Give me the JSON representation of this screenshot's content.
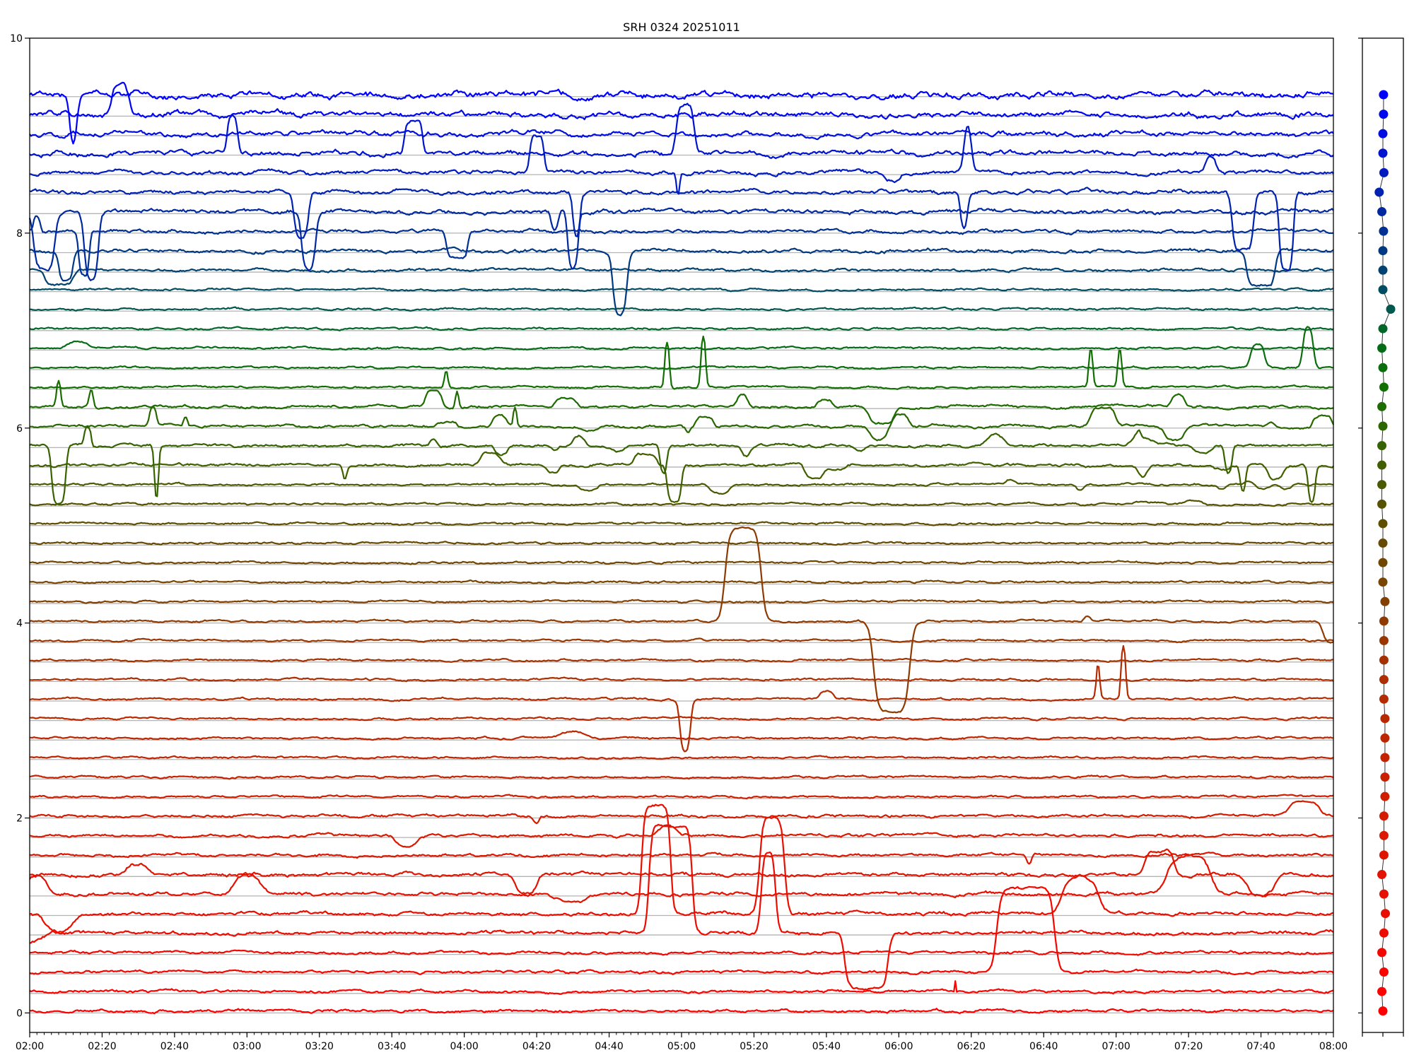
{
  "chart_data": {
    "type": "line",
    "title": "SRH 0324 20251011",
    "xlabel": "",
    "ylabel": "",
    "x_unit": "minutes since 02:00",
    "xlim": [
      0,
      360
    ],
    "ylim": [
      -0.2,
      10
    ],
    "grid": true,
    "grid_step": 0.2,
    "grid_count": 48,
    "xticks": [
      {
        "t": 0,
        "label": "02:00"
      },
      {
        "t": 20,
        "label": "02:20"
      },
      {
        "t": 40,
        "label": "02:40"
      },
      {
        "t": 60,
        "label": "03:00"
      },
      {
        "t": 80,
        "label": "03:20"
      },
      {
        "t": 100,
        "label": "03:40"
      },
      {
        "t": 120,
        "label": "04:00"
      },
      {
        "t": 140,
        "label": "04:20"
      },
      {
        "t": 160,
        "label": "04:40"
      },
      {
        "t": 180,
        "label": "05:00"
      },
      {
        "t": 200,
        "label": "05:20"
      },
      {
        "t": 220,
        "label": "05:40"
      },
      {
        "t": 240,
        "label": "06:00"
      },
      {
        "t": 260,
        "label": "06:20"
      },
      {
        "t": 280,
        "label": "06:40"
      },
      {
        "t": 300,
        "label": "07:00"
      },
      {
        "t": 320,
        "label": "07:20"
      },
      {
        "t": 340,
        "label": "07:40"
      },
      {
        "t": 360,
        "label": "08:00"
      }
    ],
    "minor_tick_step": 2,
    "yticks": [
      {
        "v": 0,
        "label": "0"
      },
      {
        "v": 2,
        "label": "2"
      },
      {
        "v": 4,
        "label": "4"
      },
      {
        "v": 6,
        "label": "6"
      },
      {
        "v": 8,
        "label": "8"
      },
      {
        "v": 10,
        "label": "10"
      }
    ],
    "colormap": [
      [
        "0",
        "#ff0000"
      ],
      [
        "0.2",
        "#d81a00"
      ],
      [
        "0.38",
        "#a83000"
      ],
      [
        "0.45",
        "#804000"
      ],
      [
        "0.53",
        "#604c00"
      ],
      [
        "0.6",
        "#406000"
      ],
      [
        "0.68",
        "#107000"
      ],
      [
        "0.74",
        "#006a20"
      ],
      [
        "0.77",
        "#005555"
      ],
      [
        "0.85",
        "#003090"
      ],
      [
        "1",
        "#0000ff"
      ]
    ],
    "series_note": "events = [center_min, half_width_min, delta_value, edge_min]",
    "series": [
      {
        "baseline": 0.02,
        "noise": 0.008,
        "events": []
      },
      {
        "baseline": 0.22,
        "noise": 0.008,
        "events": [
          [
            255.5,
            0.15,
            0.12,
            0.05
          ]
        ]
      },
      {
        "baseline": 0.42,
        "noise": 0.008,
        "events": [
          [
            275,
            8,
            0.86,
            1.2
          ]
        ]
      },
      {
        "baseline": 0.62,
        "noise": 0.008,
        "events": []
      },
      {
        "baseline": 0.82,
        "noise": 0.01,
        "events": [
          [
            177,
            6,
            1.1,
            0.8
          ],
          [
            204,
            2,
            0.85,
            0.8
          ],
          [
            231,
            6,
            -0.57,
            1
          ],
          [
            0,
            4,
            -0.1,
            2
          ]
        ]
      },
      {
        "baseline": 1.02,
        "noise": 0.01,
        "events": [
          [
            173,
            4,
            1.12,
            0.8
          ],
          [
            205,
            3.5,
            1.0,
            1
          ],
          [
            8,
            4,
            -0.2,
            2
          ],
          [
            290,
            5,
            0.4,
            2
          ]
        ]
      },
      {
        "baseline": 1.22,
        "noise": 0.01,
        "events": [
          [
            2,
            3,
            0.2,
            1.5
          ],
          [
            60,
            4,
            0.18,
            1.5
          ],
          [
            150,
            4,
            -0.1,
            2
          ],
          [
            320,
            6,
            0.4,
            2
          ]
        ]
      },
      {
        "baseline": 1.42,
        "noise": 0.01,
        "events": [
          [
            137,
            3,
            -0.2,
            1
          ],
          [
            30,
            3,
            0.1,
            1
          ],
          [
            340,
            4,
            -0.2,
            1.5
          ],
          [
            312,
            4,
            0.25,
            1
          ]
        ]
      },
      {
        "baseline": 1.62,
        "noise": 0.008,
        "events": [
          [
            276,
            0.8,
            -0.1,
            0.4
          ]
        ]
      },
      {
        "baseline": 1.82,
        "noise": 0.008,
        "events": [
          [
            104,
            3,
            -0.1,
            1
          ],
          [
            176,
            3,
            0.1,
            1
          ]
        ]
      },
      {
        "baseline": 2.02,
        "noise": 0.008,
        "events": [
          [
            140,
            0.8,
            -0.08,
            0.5
          ],
          [
            352,
            4,
            0.15,
            1.5
          ]
        ]
      },
      {
        "baseline": 2.22,
        "noise": 0.006,
        "events": []
      },
      {
        "baseline": 2.42,
        "noise": 0.006,
        "events": []
      },
      {
        "baseline": 2.62,
        "noise": 0.006,
        "events": []
      },
      {
        "baseline": 2.82,
        "noise": 0.006,
        "events": [
          [
            150,
            4,
            0.06,
            2
          ]
        ]
      },
      {
        "baseline": 3.02,
        "noise": 0.006,
        "events": []
      },
      {
        "baseline": 3.22,
        "noise": 0.006,
        "events": [
          [
            181,
            1.5,
            -0.55,
            0.7
          ],
          [
            220,
            2,
            0.08,
            0.6
          ],
          [
            295,
            0.5,
            0.42,
            0.4
          ],
          [
            302,
            0.7,
            0.58,
            0.4
          ]
        ]
      },
      {
        "baseline": 3.42,
        "noise": 0.006,
        "events": []
      },
      {
        "baseline": 3.62,
        "noise": 0.006,
        "events": []
      },
      {
        "baseline": 3.82,
        "noise": 0.006,
        "events": []
      },
      {
        "baseline": 4.02,
        "noise": 0.006,
        "events": [
          [
            197,
            5,
            0.95,
            1.2
          ],
          [
            238,
            5,
            -0.93,
            1.2
          ],
          [
            292,
            1,
            0.05,
            0.5
          ],
          [
            360,
            3,
            -0.22,
            1
          ]
        ]
      },
      {
        "baseline": 4.22,
        "noise": 0.006,
        "events": []
      },
      {
        "baseline": 4.42,
        "noise": 0.006,
        "events": []
      },
      {
        "baseline": 4.62,
        "noise": 0.006,
        "events": []
      },
      {
        "baseline": 4.82,
        "noise": 0.006,
        "events": []
      },
      {
        "baseline": 5.02,
        "noise": 0.006,
        "events": []
      },
      {
        "baseline": 5.22,
        "noise": 0.006,
        "events": [],
        "wiggle": {
          "count": 4,
          "amp": 0.05,
          "range": [
            200,
            360
          ]
        }
      },
      {
        "baseline": 5.42,
        "noise": 0.006,
        "events": [
          [
            290,
            1,
            -0.06,
            0.5
          ]
        ],
        "wiggle": {
          "count": 8,
          "amp": 0.1,
          "range": [
            140,
            360
          ]
        }
      },
      {
        "baseline": 5.62,
        "noise": 0.008,
        "events": [
          [
            178,
            2,
            -0.38,
            0.6
          ],
          [
            354,
            1,
            -0.4,
            0.5
          ],
          [
            335,
            0.8,
            -0.3,
            0.5
          ],
          [
            87,
            0.6,
            -0.15,
            0.4
          ]
        ],
        "wiggle": {
          "count": 10,
          "amp": 0.18,
          "range": [
            120,
            360
          ]
        }
      },
      {
        "baseline": 5.82,
        "noise": 0.008,
        "events": [
          [
            8,
            2,
            -0.6,
            0.6
          ],
          [
            16,
            1,
            0.2,
            0.4
          ],
          [
            35,
            0.6,
            -0.6,
            0.4
          ],
          [
            175,
            1,
            -0.3,
            0.5
          ],
          [
            331,
            1,
            -0.3,
            0.5
          ]
        ],
        "wiggle": {
          "count": 12,
          "amp": 0.2,
          "range": [
            110,
            360
          ]
        }
      },
      {
        "baseline": 6.02,
        "noise": 0.008,
        "events": [
          [
            34,
            1,
            0.2,
            0.5
          ],
          [
            43,
            0.6,
            0.1,
            0.4
          ],
          [
            134,
            0.5,
            0.2,
            0.3
          ]
        ],
        "wiggle": {
          "count": 12,
          "amp": 0.2,
          "range": [
            110,
            360
          ]
        }
      },
      {
        "baseline": 6.22,
        "noise": 0.008,
        "events": [
          [
            8,
            0.6,
            0.3,
            0.4
          ],
          [
            17,
            0.6,
            0.2,
            0.4
          ],
          [
            118,
            0.5,
            0.2,
            0.4
          ]
        ],
        "wiggle": {
          "count": 10,
          "amp": 0.2,
          "range": [
            110,
            360
          ]
        }
      },
      {
        "baseline": 6.42,
        "noise": 0.006,
        "events": [
          [
            176,
            0.7,
            0.5,
            0.4
          ],
          [
            186,
            0.7,
            0.55,
            0.4
          ],
          [
            293,
            0.6,
            0.43,
            0.4
          ],
          [
            301,
            0.6,
            0.42,
            0.4
          ],
          [
            115,
            0.5,
            0.2,
            0.4
          ]
        ]
      },
      {
        "baseline": 6.62,
        "noise": 0.006,
        "events": [
          [
            353,
            1.5,
            0.43,
            0.7
          ],
          [
            339,
            2,
            0.25,
            0.8
          ]
        ]
      },
      {
        "baseline": 6.82,
        "noise": 0.006,
        "events": [
          [
            13,
            3,
            0.06,
            1.5
          ]
        ]
      },
      {
        "baseline": 7.02,
        "noise": 0.006,
        "events": []
      },
      {
        "baseline": 7.22,
        "noise": 0.006,
        "events": []
      },
      {
        "baseline": 7.42,
        "noise": 0.006,
        "events": []
      },
      {
        "baseline": 7.62,
        "noise": 0.008,
        "events": [
          [
            8,
            4,
            -0.15,
            1
          ]
        ]
      },
      {
        "baseline": 7.82,
        "noise": 0.01,
        "events": [
          [
            163,
            2,
            -0.67,
            0.8
          ],
          [
            340,
            4,
            -0.35,
            0.8
          ],
          [
            10,
            2,
            -0.3,
            0.6
          ]
        ]
      },
      {
        "baseline": 8.02,
        "noise": 0.01,
        "events": [
          [
            118,
            3,
            -0.28,
            0.6
          ],
          [
            2,
            1,
            0.15,
            0.4
          ],
          [
            15,
            1.5,
            -0.45,
            0.5
          ]
        ]
      },
      {
        "baseline": 8.22,
        "noise": 0.012,
        "events": [
          [
            77,
            2,
            -0.6,
            0.8
          ],
          [
            150,
            1.5,
            -0.6,
            0.6
          ],
          [
            145,
            1,
            -0.2,
            0.5
          ],
          [
            4,
            3,
            -0.6,
            1
          ],
          [
            17,
            2,
            -0.7,
            0.8
          ]
        ]
      },
      {
        "baseline": 8.42,
        "noise": 0.012,
        "events": [
          [
            75,
            2,
            -0.5,
            0.8
          ],
          [
            151,
            1,
            -0.5,
            0.6
          ],
          [
            258,
            1,
            -0.4,
            0.6
          ],
          [
            335,
            3,
            -0.6,
            0.8
          ],
          [
            347,
            2,
            -0.8,
            0.6
          ]
        ]
      },
      {
        "baseline": 8.62,
        "noise": 0.012,
        "events": [
          [
            140,
            2,
            0.4,
            0.6
          ],
          [
            259,
            1,
            0.55,
            0.8
          ],
          [
            326,
            1.5,
            0.18,
            0.8
          ],
          [
            238,
            2,
            -0.1,
            1
          ],
          [
            179,
            0.5,
            -0.25,
            0.3
          ]
        ]
      },
      {
        "baseline": 8.82,
        "noise": 0.014,
        "events": [
          [
            56,
            1.5,
            0.4,
            0.6
          ],
          [
            106,
            2.5,
            0.35,
            0.6
          ],
          [
            181,
            2.5,
            0.5,
            0.8
          ]
        ]
      },
      {
        "baseline": 9.02,
        "noise": 0.014,
        "events": []
      },
      {
        "baseline": 9.22,
        "noise": 0.016,
        "events": [
          [
            25,
            2.5,
            0.3,
            0.8
          ]
        ]
      },
      {
        "baseline": 9.42,
        "noise": 0.018,
        "events": [
          [
            12,
            1,
            -0.6,
            0.8
          ]
        ]
      }
    ],
    "side_panel": {
      "xlim": [
        -1,
        1
      ],
      "dots": [
        {
          "value": 0.02,
          "offset": 0.0
        },
        {
          "value": 0.22,
          "offset": -0.05
        },
        {
          "value": 0.42,
          "offset": 0.05
        },
        {
          "value": 0.62,
          "offset": -0.05
        },
        {
          "value": 0.82,
          "offset": 0.05
        },
        {
          "value": 1.02,
          "offset": 0.12
        },
        {
          "value": 1.22,
          "offset": 0.05
        },
        {
          "value": 1.42,
          "offset": -0.05
        },
        {
          "value": 1.62,
          "offset": 0.05
        },
        {
          "value": 1.82,
          "offset": 0.05
        },
        {
          "value": 2.02,
          "offset": 0.05
        },
        {
          "value": 2.22,
          "offset": 0.1
        },
        {
          "value": 2.42,
          "offset": 0.1
        },
        {
          "value": 2.62,
          "offset": 0.1
        },
        {
          "value": 2.82,
          "offset": 0.1
        },
        {
          "value": 3.02,
          "offset": 0.1
        },
        {
          "value": 3.22,
          "offset": 0.05
        },
        {
          "value": 3.42,
          "offset": 0.05
        },
        {
          "value": 3.62,
          "offset": 0.05
        },
        {
          "value": 3.82,
          "offset": 0.05
        },
        {
          "value": 4.02,
          "offset": 0.05
        },
        {
          "value": 4.22,
          "offset": 0.1
        },
        {
          "value": 4.42,
          "offset": 0.0
        },
        {
          "value": 4.62,
          "offset": 0.0
        },
        {
          "value": 4.82,
          "offset": 0.0
        },
        {
          "value": 5.02,
          "offset": 0.0
        },
        {
          "value": 5.22,
          "offset": -0.05
        },
        {
          "value": 5.42,
          "offset": -0.05
        },
        {
          "value": 5.62,
          "offset": -0.05
        },
        {
          "value": 5.82,
          "offset": -0.05
        },
        {
          "value": 6.02,
          "offset": 0.0
        },
        {
          "value": 6.22,
          "offset": -0.05
        },
        {
          "value": 6.42,
          "offset": 0.05
        },
        {
          "value": 6.62,
          "offset": 0.0
        },
        {
          "value": 6.82,
          "offset": -0.05
        },
        {
          "value": 7.02,
          "offset": 0.0
        },
        {
          "value": 7.22,
          "offset": 0.38
        },
        {
          "value": 7.42,
          "offset": 0.0
        },
        {
          "value": 7.62,
          "offset": 0.0
        },
        {
          "value": 7.82,
          "offset": 0.0
        },
        {
          "value": 8.02,
          "offset": 0.03
        },
        {
          "value": 8.22,
          "offset": -0.05
        },
        {
          "value": 8.42,
          "offset": -0.18
        },
        {
          "value": 8.62,
          "offset": 0.05
        },
        {
          "value": 8.82,
          "offset": 0.0
        },
        {
          "value": 9.02,
          "offset": 0.0
        },
        {
          "value": 9.22,
          "offset": 0.03
        },
        {
          "value": 9.42,
          "offset": 0.03
        }
      ],
      "xticks": [
        -1,
        0,
        1
      ],
      "yticks": [
        0,
        2,
        4,
        6,
        8,
        10
      ]
    }
  }
}
